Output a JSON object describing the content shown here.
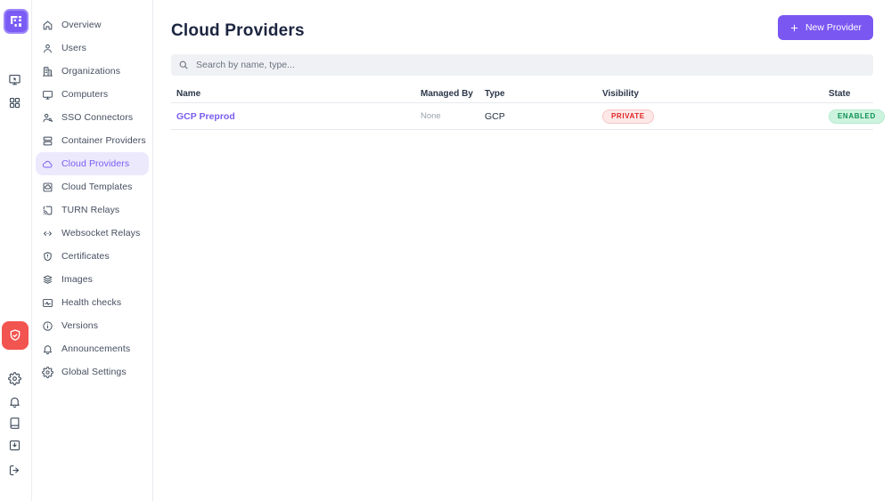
{
  "colors": {
    "accent_purple": "#7b57f2",
    "selected_bg": "#ece9fd",
    "alert_red": "#f2544f",
    "badge_private_bg": "#fde8e8",
    "badge_private_text": "#e02424",
    "badge_enabled_bg": "#cdf3de",
    "badge_enabled_text": "#0d9255"
  },
  "rail": {
    "logo_icon": "pixel-logo",
    "top_icons": [
      {
        "icon": "remote-desktop"
      },
      {
        "icon": "apps-grid"
      }
    ],
    "alert_button_icon": "shield-check",
    "bottom_icons": [
      {
        "icon": "settings"
      },
      {
        "icon": "notifications-bell"
      },
      {
        "icon": "docs-book"
      },
      {
        "icon": "import-box"
      },
      {
        "icon": "logout"
      }
    ]
  },
  "sidebar": {
    "items": [
      {
        "label": "Overview",
        "icon": "home",
        "selected": "false"
      },
      {
        "label": "Users",
        "icon": "user",
        "selected": "false"
      },
      {
        "label": "Organizations",
        "icon": "building",
        "selected": "false"
      },
      {
        "label": "Computers",
        "icon": "monitor",
        "selected": "false"
      },
      {
        "label": "SSO Connectors",
        "icon": "user-key",
        "selected": "false"
      },
      {
        "label": "Container Providers",
        "icon": "server-stack",
        "selected": "false"
      },
      {
        "label": "Cloud Providers",
        "icon": "cloud",
        "selected": "true"
      },
      {
        "label": "Cloud Templates",
        "icon": "cloud-template",
        "selected": "false"
      },
      {
        "label": "TURN Relays",
        "icon": "cast-signal",
        "selected": "false"
      },
      {
        "label": "Websocket Relays",
        "icon": "code-brackets",
        "selected": "false"
      },
      {
        "label": "Certificates",
        "icon": "shield-cert",
        "selected": "false"
      },
      {
        "label": "Images",
        "icon": "layers",
        "selected": "false"
      },
      {
        "label": "Health checks",
        "icon": "health-pulse",
        "selected": "false"
      },
      {
        "label": "Versions",
        "icon": "info-circle",
        "selected": "false"
      },
      {
        "label": "Announcements",
        "icon": "notifications-bell",
        "selected": "false"
      },
      {
        "label": "Global Settings",
        "icon": "settings",
        "selected": "false"
      }
    ]
  },
  "header": {
    "title": "Cloud Providers",
    "new_button_label": "New Provider"
  },
  "search": {
    "placeholder": "Search by name, type..."
  },
  "table": {
    "columns": [
      "Name",
      "Managed By",
      "Type",
      "Visibility",
      "State"
    ],
    "rows": [
      {
        "name": "GCP Preprod",
        "managed_by": "None",
        "type": "GCP",
        "visibility": "PRIVATE",
        "visibility_variant": "private",
        "state": "ENABLED",
        "state_variant": "enabled"
      }
    ]
  }
}
